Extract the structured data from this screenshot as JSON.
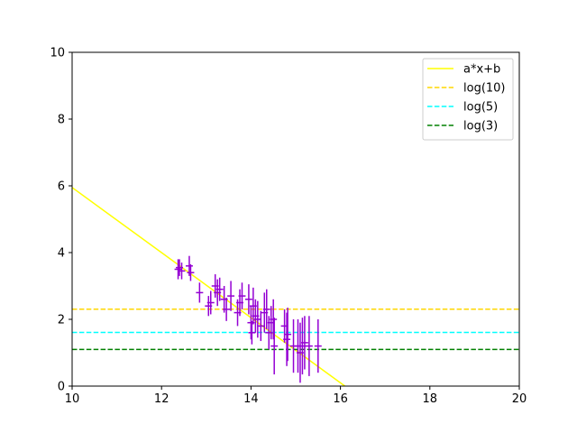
{
  "chart_data": {
    "type": "scatter",
    "xlim": [
      10,
      20
    ],
    "ylim": [
      0,
      10
    ],
    "x_ticks": [
      10,
      12,
      14,
      16,
      18,
      20
    ],
    "y_ticks": [
      0,
      2,
      4,
      6,
      8,
      10
    ],
    "grid": false,
    "legend_position": "top-right",
    "fit_line": {
      "name": "a*x+b",
      "color": "#ffff00",
      "points": [
        [
          10,
          5.95
        ],
        [
          16.1,
          0
        ]
      ]
    },
    "hlines": [
      {
        "name": "log(10)",
        "y": 2.303,
        "color": "#ffd700",
        "style": "dashed"
      },
      {
        "name": "log(5)",
        "y": 1.609,
        "color": "#00ffff",
        "style": "dashed"
      },
      {
        "name": "log(3)",
        "y": 1.099,
        "color": "#008000",
        "style": "dashed"
      }
    ],
    "error_color": "#9400d3",
    "points": [
      {
        "x": 12.37,
        "y": 3.5,
        "xerr": 0.08,
        "yerr": 0.3
      },
      {
        "x": 12.4,
        "y": 3.55,
        "xerr": 0.08,
        "yerr": 0.25
      },
      {
        "x": 12.45,
        "y": 3.45,
        "xerr": 0.08,
        "yerr": 0.25
      },
      {
        "x": 12.62,
        "y": 3.6,
        "xerr": 0.08,
        "yerr": 0.3
      },
      {
        "x": 12.65,
        "y": 3.4,
        "xerr": 0.08,
        "yerr": 0.25
      },
      {
        "x": 12.85,
        "y": 2.8,
        "xerr": 0.08,
        "yerr": 0.3
      },
      {
        "x": 13.05,
        "y": 2.4,
        "xerr": 0.08,
        "yerr": 0.3
      },
      {
        "x": 13.1,
        "y": 2.5,
        "xerr": 0.08,
        "yerr": 0.35
      },
      {
        "x": 13.2,
        "y": 3.0,
        "xerr": 0.08,
        "yerr": 0.35
      },
      {
        "x": 13.25,
        "y": 2.8,
        "xerr": 0.08,
        "yerr": 0.4
      },
      {
        "x": 13.3,
        "y": 2.9,
        "xerr": 0.08,
        "yerr": 0.35
      },
      {
        "x": 13.4,
        "y": 2.6,
        "xerr": 0.08,
        "yerr": 0.4
      },
      {
        "x": 13.45,
        "y": 2.3,
        "xerr": 0.08,
        "yerr": 0.35
      },
      {
        "x": 13.55,
        "y": 2.7,
        "xerr": 0.08,
        "yerr": 0.45
      },
      {
        "x": 13.7,
        "y": 2.2,
        "xerr": 0.08,
        "yerr": 0.4
      },
      {
        "x": 13.75,
        "y": 2.5,
        "xerr": 0.08,
        "yerr": 0.4
      },
      {
        "x": 13.8,
        "y": 2.7,
        "xerr": 0.08,
        "yerr": 0.4
      },
      {
        "x": 13.95,
        "y": 2.6,
        "xerr": 0.08,
        "yerr": 0.45
      },
      {
        "x": 14.0,
        "y": 1.9,
        "xerr": 0.08,
        "yerr": 0.5
      },
      {
        "x": 14.02,
        "y": 1.6,
        "xerr": 0.08,
        "yerr": 0.35
      },
      {
        "x": 14.05,
        "y": 2.4,
        "xerr": 0.08,
        "yerr": 0.55
      },
      {
        "x": 14.1,
        "y": 2.1,
        "xerr": 0.08,
        "yerr": 0.5
      },
      {
        "x": 14.15,
        "y": 2.0,
        "xerr": 0.08,
        "yerr": 0.55
      },
      {
        "x": 14.22,
        "y": 1.8,
        "xerr": 0.08,
        "yerr": 0.45
      },
      {
        "x": 14.3,
        "y": 2.2,
        "xerr": 0.08,
        "yerr": 0.6
      },
      {
        "x": 14.35,
        "y": 2.3,
        "xerr": 0.08,
        "yerr": 0.6
      },
      {
        "x": 14.4,
        "y": 1.6,
        "xerr": 0.08,
        "yerr": 0.5
      },
      {
        "x": 14.45,
        "y": 1.9,
        "xerr": 0.08,
        "yerr": 0.5
      },
      {
        "x": 14.5,
        "y": 2.0,
        "xerr": 0.08,
        "yerr": 0.6
      },
      {
        "x": 14.52,
        "y": 1.2,
        "xerr": 0.08,
        "yerr": 0.85
      },
      {
        "x": 14.75,
        "y": 1.8,
        "xerr": 0.08,
        "yerr": 0.5
      },
      {
        "x": 14.8,
        "y": 1.4,
        "xerr": 0.08,
        "yerr": 0.8
      },
      {
        "x": 14.82,
        "y": 1.55,
        "xerr": 0.08,
        "yerr": 0.8
      },
      {
        "x": 14.95,
        "y": 1.2,
        "xerr": 0.08,
        "yerr": 0.8
      },
      {
        "x": 15.05,
        "y": 1.2,
        "xerr": 0.08,
        "yerr": 0.8
      },
      {
        "x": 15.1,
        "y": 1.0,
        "xerr": 0.08,
        "yerr": 0.9
      },
      {
        "x": 15.15,
        "y": 1.2,
        "xerr": 0.08,
        "yerr": 0.85
      },
      {
        "x": 15.2,
        "y": 1.3,
        "xerr": 0.08,
        "yerr": 0.8
      },
      {
        "x": 15.3,
        "y": 1.2,
        "xerr": 0.08,
        "yerr": 0.9
      },
      {
        "x": 15.5,
        "y": 1.2,
        "xerr": 0.08,
        "yerr": 0.8
      }
    ]
  }
}
